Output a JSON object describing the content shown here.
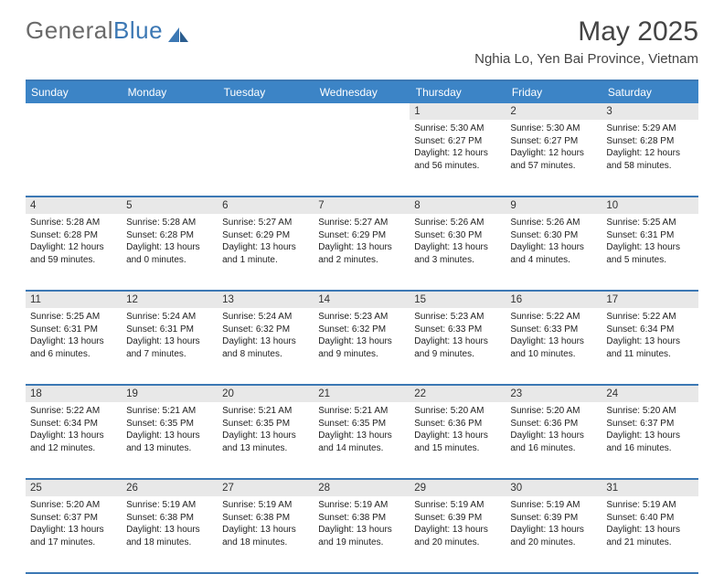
{
  "logo": {
    "part1": "General",
    "part2": "Blue"
  },
  "title": "May 2025",
  "location": "Nghia Lo, Yen Bai Province, Vietnam",
  "colors": {
    "header_bg": "#3c84c6",
    "border": "#3c78b4",
    "daynum_bg": "#e8e8e8",
    "text": "#222222",
    "logo_gray": "#6a6a6a",
    "logo_blue": "#3c78b4"
  },
  "weekdays": [
    "Sunday",
    "Monday",
    "Tuesday",
    "Wednesday",
    "Thursday",
    "Friday",
    "Saturday"
  ],
  "weeks": [
    {
      "days": [
        {
          "n": "",
          "sr": "",
          "ss": "",
          "dl": ""
        },
        {
          "n": "",
          "sr": "",
          "ss": "",
          "dl": ""
        },
        {
          "n": "",
          "sr": "",
          "ss": "",
          "dl": ""
        },
        {
          "n": "",
          "sr": "",
          "ss": "",
          "dl": ""
        },
        {
          "n": "1",
          "sr": "Sunrise: 5:30 AM",
          "ss": "Sunset: 6:27 PM",
          "dl": "Daylight: 12 hours and 56 minutes."
        },
        {
          "n": "2",
          "sr": "Sunrise: 5:30 AM",
          "ss": "Sunset: 6:27 PM",
          "dl": "Daylight: 12 hours and 57 minutes."
        },
        {
          "n": "3",
          "sr": "Sunrise: 5:29 AM",
          "ss": "Sunset: 6:28 PM",
          "dl": "Daylight: 12 hours and 58 minutes."
        }
      ]
    },
    {
      "days": [
        {
          "n": "4",
          "sr": "Sunrise: 5:28 AM",
          "ss": "Sunset: 6:28 PM",
          "dl": "Daylight: 12 hours and 59 minutes."
        },
        {
          "n": "5",
          "sr": "Sunrise: 5:28 AM",
          "ss": "Sunset: 6:28 PM",
          "dl": "Daylight: 13 hours and 0 minutes."
        },
        {
          "n": "6",
          "sr": "Sunrise: 5:27 AM",
          "ss": "Sunset: 6:29 PM",
          "dl": "Daylight: 13 hours and 1 minute."
        },
        {
          "n": "7",
          "sr": "Sunrise: 5:27 AM",
          "ss": "Sunset: 6:29 PM",
          "dl": "Daylight: 13 hours and 2 minutes."
        },
        {
          "n": "8",
          "sr": "Sunrise: 5:26 AM",
          "ss": "Sunset: 6:30 PM",
          "dl": "Daylight: 13 hours and 3 minutes."
        },
        {
          "n": "9",
          "sr": "Sunrise: 5:26 AM",
          "ss": "Sunset: 6:30 PM",
          "dl": "Daylight: 13 hours and 4 minutes."
        },
        {
          "n": "10",
          "sr": "Sunrise: 5:25 AM",
          "ss": "Sunset: 6:31 PM",
          "dl": "Daylight: 13 hours and 5 minutes."
        }
      ]
    },
    {
      "days": [
        {
          "n": "11",
          "sr": "Sunrise: 5:25 AM",
          "ss": "Sunset: 6:31 PM",
          "dl": "Daylight: 13 hours and 6 minutes."
        },
        {
          "n": "12",
          "sr": "Sunrise: 5:24 AM",
          "ss": "Sunset: 6:31 PM",
          "dl": "Daylight: 13 hours and 7 minutes."
        },
        {
          "n": "13",
          "sr": "Sunrise: 5:24 AM",
          "ss": "Sunset: 6:32 PM",
          "dl": "Daylight: 13 hours and 8 minutes."
        },
        {
          "n": "14",
          "sr": "Sunrise: 5:23 AM",
          "ss": "Sunset: 6:32 PM",
          "dl": "Daylight: 13 hours and 9 minutes."
        },
        {
          "n": "15",
          "sr": "Sunrise: 5:23 AM",
          "ss": "Sunset: 6:33 PM",
          "dl": "Daylight: 13 hours and 9 minutes."
        },
        {
          "n": "16",
          "sr": "Sunrise: 5:22 AM",
          "ss": "Sunset: 6:33 PM",
          "dl": "Daylight: 13 hours and 10 minutes."
        },
        {
          "n": "17",
          "sr": "Sunrise: 5:22 AM",
          "ss": "Sunset: 6:34 PM",
          "dl": "Daylight: 13 hours and 11 minutes."
        }
      ]
    },
    {
      "days": [
        {
          "n": "18",
          "sr": "Sunrise: 5:22 AM",
          "ss": "Sunset: 6:34 PM",
          "dl": "Daylight: 13 hours and 12 minutes."
        },
        {
          "n": "19",
          "sr": "Sunrise: 5:21 AM",
          "ss": "Sunset: 6:35 PM",
          "dl": "Daylight: 13 hours and 13 minutes."
        },
        {
          "n": "20",
          "sr": "Sunrise: 5:21 AM",
          "ss": "Sunset: 6:35 PM",
          "dl": "Daylight: 13 hours and 13 minutes."
        },
        {
          "n": "21",
          "sr": "Sunrise: 5:21 AM",
          "ss": "Sunset: 6:35 PM",
          "dl": "Daylight: 13 hours and 14 minutes."
        },
        {
          "n": "22",
          "sr": "Sunrise: 5:20 AM",
          "ss": "Sunset: 6:36 PM",
          "dl": "Daylight: 13 hours and 15 minutes."
        },
        {
          "n": "23",
          "sr": "Sunrise: 5:20 AM",
          "ss": "Sunset: 6:36 PM",
          "dl": "Daylight: 13 hours and 16 minutes."
        },
        {
          "n": "24",
          "sr": "Sunrise: 5:20 AM",
          "ss": "Sunset: 6:37 PM",
          "dl": "Daylight: 13 hours and 16 minutes."
        }
      ]
    },
    {
      "days": [
        {
          "n": "25",
          "sr": "Sunrise: 5:20 AM",
          "ss": "Sunset: 6:37 PM",
          "dl": "Daylight: 13 hours and 17 minutes."
        },
        {
          "n": "26",
          "sr": "Sunrise: 5:19 AM",
          "ss": "Sunset: 6:38 PM",
          "dl": "Daylight: 13 hours and 18 minutes."
        },
        {
          "n": "27",
          "sr": "Sunrise: 5:19 AM",
          "ss": "Sunset: 6:38 PM",
          "dl": "Daylight: 13 hours and 18 minutes."
        },
        {
          "n": "28",
          "sr": "Sunrise: 5:19 AM",
          "ss": "Sunset: 6:38 PM",
          "dl": "Daylight: 13 hours and 19 minutes."
        },
        {
          "n": "29",
          "sr": "Sunrise: 5:19 AM",
          "ss": "Sunset: 6:39 PM",
          "dl": "Daylight: 13 hours and 20 minutes."
        },
        {
          "n": "30",
          "sr": "Sunrise: 5:19 AM",
          "ss": "Sunset: 6:39 PM",
          "dl": "Daylight: 13 hours and 20 minutes."
        },
        {
          "n": "31",
          "sr": "Sunrise: 5:19 AM",
          "ss": "Sunset: 6:40 PM",
          "dl": "Daylight: 13 hours and 21 minutes."
        }
      ]
    }
  ]
}
